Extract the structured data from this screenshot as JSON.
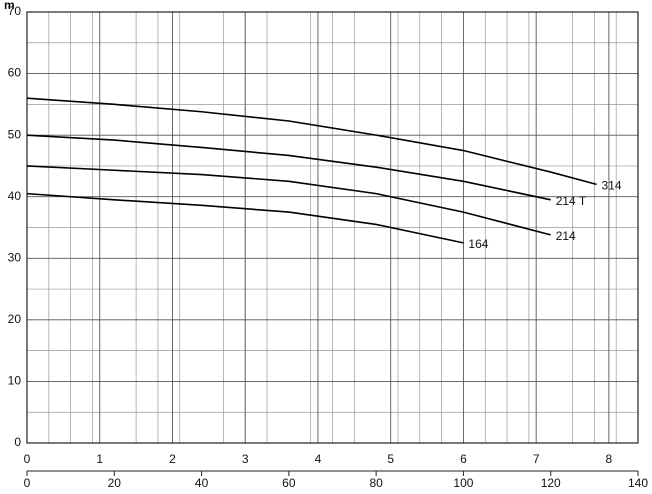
{
  "chart_data": {
    "type": "line",
    "y_label": "m",
    "x": [
      0,
      20,
      40,
      60,
      80,
      100,
      120,
      130.5
    ],
    "series": [
      {
        "name": "314",
        "color": "#000000",
        "values": [
          56,
          55,
          53.8,
          52.3,
          50,
          47.5,
          44,
          42
        ]
      },
      {
        "name": "214 T",
        "color": "#000000",
        "values": [
          50,
          49.2,
          48,
          46.7,
          44.8,
          42.5,
          39.5,
          null
        ]
      },
      {
        "name": "214",
        "color": "#000000",
        "values": [
          45,
          44.3,
          43.6,
          42.5,
          40.5,
          37.5,
          33.8,
          null
        ]
      },
      {
        "name": "164",
        "color": "#000000",
        "values": [
          40.5,
          39.5,
          38.6,
          37.5,
          35.5,
          32.5,
          null,
          null
        ]
      }
    ],
    "xlim": [
      0,
      140
    ],
    "xticks": [
      0,
      20,
      40,
      60,
      80,
      100,
      120,
      140
    ],
    "x2lim": [
      0,
      8.4
    ],
    "x2ticks": [
      0,
      1,
      2,
      3,
      4,
      5,
      6,
      7,
      8
    ],
    "ylim": [
      0,
      70
    ],
    "yticks": [
      0,
      10,
      20,
      30,
      40,
      50,
      60,
      70
    ],
    "grid": true,
    "minor_grid": true
  }
}
